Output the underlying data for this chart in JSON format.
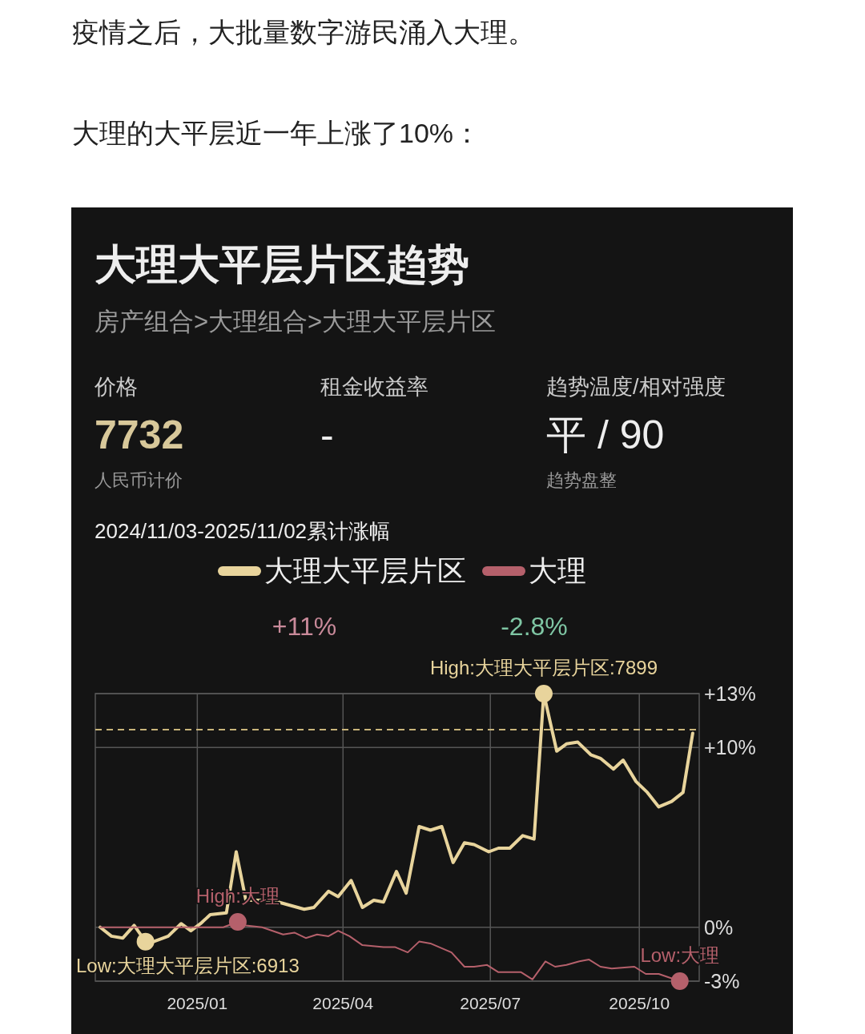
{
  "chart_data": {
    "type": "line",
    "title": "大理大平层片区趋势",
    "subtitle": "房产组合>大理组合>大理大平层片区",
    "annotations": [
      "疫情之后，大批量数字游民涌入大理。",
      "大理的大平层近一年上涨了10%：",
      "价格",
      "7732",
      "人民币计价",
      "租金收益率",
      "-",
      "趋势温度/相对强度",
      "平 / 90",
      "趋势盘整",
      "2024/11/03-2025/11/02累计涨幅",
      "+11%",
      "-2.8%",
      {
        "text": "High:大理大平层片区:7899",
        "x": "2025-08-03",
        "y": 13.0
      },
      {
        "text": "Low:大理大平层片区:6913",
        "x": "2024-11-30",
        "y": -0.8
      },
      {
        "text": "High:大理",
        "x": "2025-01-26",
        "y": 0.3
      },
      {
        "text": "Low:大理",
        "x": "2025-10-26",
        "y": -3.0
      }
    ],
    "series": [
      {
        "name": "大理大平层片区",
        "color": "#e8d49c",
        "x": [
          "2024-11-02",
          "2024-11-09",
          "2024-11-16",
          "2024-11-23",
          "2024-11-30",
          "2024-12-05",
          "2024-12-14",
          "2024-12-22",
          "2024-12-28",
          "2025-01-03",
          "2025-01-09",
          "2025-01-19",
          "2025-01-25",
          "2025-01-31",
          "2025-02-16",
          "2025-03-08",
          "2025-03-14",
          "2025-03-23",
          "2025-03-29",
          "2025-04-06",
          "2025-04-13",
          "2025-04-20",
          "2025-04-26",
          "2025-05-04",
          "2025-05-10",
          "2025-05-18",
          "2025-05-25",
          "2025-06-01",
          "2025-06-08",
          "2025-06-15",
          "2025-06-21",
          "2025-06-30",
          "2025-07-06",
          "2025-07-13",
          "2025-07-21",
          "2025-07-28",
          "2025-08-03",
          "2025-08-11",
          "2025-08-17",
          "2025-08-24",
          "2025-09-01",
          "2025-09-07",
          "2025-09-15",
          "2025-09-21",
          "2025-09-29",
          "2025-10-06",
          "2025-10-13",
          "2025-10-21",
          "2025-10-28",
          "2025-11-03"
        ],
        "values": [
          0.0,
          -0.5,
          -0.6,
          0.1,
          -0.8,
          -0.8,
          -0.5,
          0.2,
          -0.2,
          0.2,
          0.7,
          0.8,
          4.2,
          1.5,
          1.5,
          1.0,
          1.1,
          2.0,
          1.7,
          2.6,
          1.1,
          1.5,
          1.4,
          3.1,
          1.9,
          5.6,
          5.4,
          5.6,
          3.6,
          4.7,
          4.6,
          4.2,
          4.4,
          4.4,
          5.1,
          4.9,
          13.0,
          9.8,
          10.2,
          10.3,
          9.6,
          9.4,
          8.8,
          9.3,
          8.1,
          7.5,
          6.7,
          7.0,
          7.5,
          10.8
        ]
      },
      {
        "name": "大理",
        "color": "#b5606b",
        "x": [
          "2024-11-02",
          "2025-01-17",
          "2025-01-26",
          "2025-01-31",
          "2025-02-10",
          "2025-02-23",
          "2025-03-02",
          "2025-03-09",
          "2025-03-16",
          "2025-03-23",
          "2025-03-29",
          "2025-04-05",
          "2025-04-13",
          "2025-04-26",
          "2025-05-03",
          "2025-05-11",
          "2025-05-18",
          "2025-05-25",
          "2025-06-07",
          "2025-06-15",
          "2025-06-21",
          "2025-06-29",
          "2025-07-06",
          "2025-07-20",
          "2025-07-27",
          "2025-08-04",
          "2025-08-10",
          "2025-08-17",
          "2025-08-25",
          "2025-08-31",
          "2025-09-07",
          "2025-09-14",
          "2025-09-28",
          "2025-10-05",
          "2025-10-13",
          "2025-10-26"
        ],
        "values": [
          0.0,
          0.0,
          0.3,
          0.1,
          0.0,
          -0.4,
          -0.3,
          -0.6,
          -0.4,
          -0.5,
          -0.2,
          -0.5,
          -1.0,
          -1.1,
          -1.1,
          -1.4,
          -0.8,
          -0.9,
          -1.4,
          -2.2,
          -2.2,
          -2.1,
          -2.5,
          -2.5,
          -2.9,
          -1.9,
          -2.2,
          -2.1,
          -1.9,
          -1.8,
          -2.2,
          -2.3,
          -2.2,
          -2.6,
          -2.6,
          -3.0
        ]
      }
    ],
    "xlim": [
      "2024-10-30",
      "2025-11-07"
    ],
    "xticks": [
      {
        "value": "2025-01-01",
        "label": "2025/01"
      },
      {
        "value": "2025-04-01",
        "label": "2025/04"
      },
      {
        "value": "2025-07-01",
        "label": "2025/07"
      },
      {
        "value": "2025-10-01",
        "label": "2025/10"
      }
    ],
    "ylim": [
      -3,
      13
    ],
    "yticks": [
      {
        "value": -3,
        "label": "-3%"
      },
      {
        "value": 0,
        "label": "0%"
      },
      {
        "value": 10,
        "label": "+10%"
      },
      {
        "value": 13,
        "label": "+13%"
      }
    ],
    "ref_lines": [
      {
        "axis": "y",
        "value": 11,
        "color": "#c9b47a",
        "line_style": "dashed"
      }
    ],
    "grid": true,
    "legend": "top",
    "line_style": "solid"
  }
}
